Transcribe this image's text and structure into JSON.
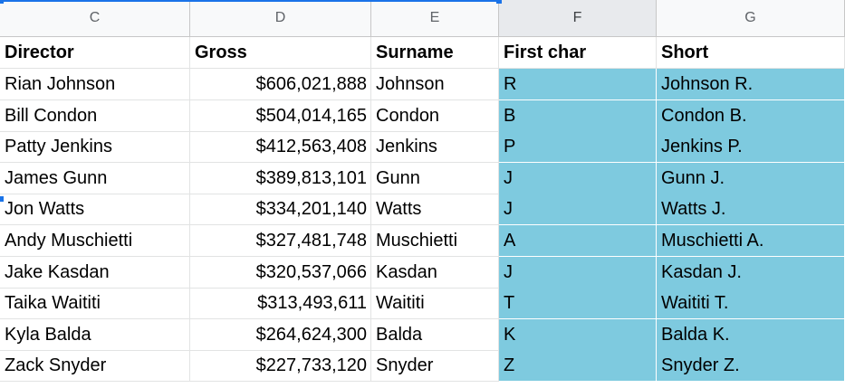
{
  "columns": [
    "C",
    "D",
    "E",
    "F",
    "G"
  ],
  "selected_column": "F",
  "highlight_color": "#7ecadf",
  "header_row": [
    "Director",
    "Gross",
    "Surname",
    "First char",
    "Short"
  ],
  "rows": [
    [
      "Rian Johnson",
      "$606,021,888",
      "Johnson",
      "R",
      "Johnson R."
    ],
    [
      "Bill Condon",
      "$504,014,165",
      "Condon",
      "B",
      "Condon B."
    ],
    [
      "Patty Jenkins",
      "$412,563,408",
      "Jenkins",
      "P",
      "Jenkins P."
    ],
    [
      "James Gunn",
      "$389,813,101",
      "Gunn",
      "J",
      "Gunn J."
    ],
    [
      "Jon Watts",
      "$334,201,140",
      "Watts",
      "J",
      "Watts J."
    ],
    [
      "Andy Muschietti",
      "$327,481,748",
      "Muschietti",
      "A",
      "Muschietti A."
    ],
    [
      "Jake Kasdan",
      "$320,537,066",
      "Kasdan",
      "J",
      "Kasdan J."
    ],
    [
      "Taika Waititi",
      "$313,493,611",
      "Waititi",
      "T",
      "Waititi T."
    ],
    [
      "Kyla Balda",
      "$264,624,300",
      "Balda",
      "K",
      "Balda K."
    ],
    [
      "Zack Snyder",
      "$227,733,120",
      "Snyder",
      "Z",
      "Snyder Z."
    ]
  ]
}
